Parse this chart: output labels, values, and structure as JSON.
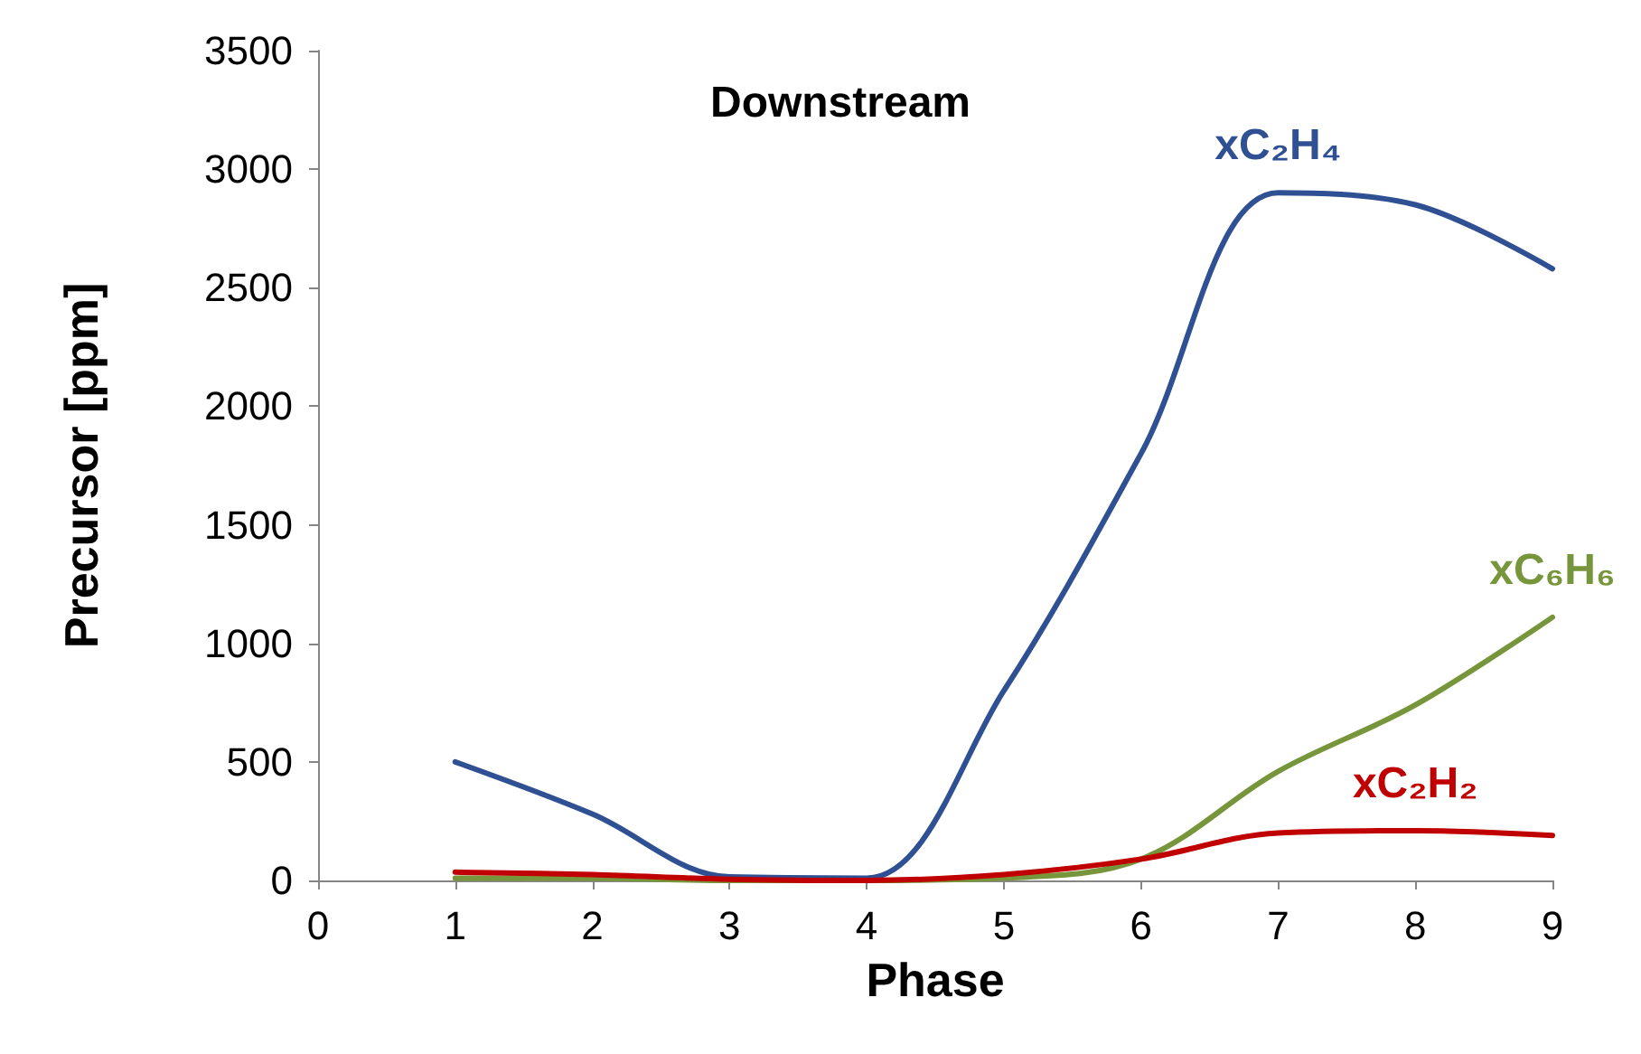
{
  "chart_data": {
    "type": "line",
    "title": "Downstream",
    "xlabel": "Phase",
    "ylabel": "Precursor [ppm]",
    "x": [
      1,
      2,
      3,
      4,
      5,
      6,
      7,
      8,
      9
    ],
    "series": [
      {
        "name": "xC₂H₄",
        "color": "#2f5092",
        "values": [
          500,
          280,
          15,
          10,
          800,
          1800,
          2900,
          2850,
          2580
        ]
      },
      {
        "name": "xC₆H₆",
        "color": "#77963b",
        "values": [
          10,
          10,
          0,
          0,
          10,
          90,
          460,
          740,
          1110
        ]
      },
      {
        "name": "xC₂H₂",
        "color": "#c00000",
        "values": [
          35,
          25,
          5,
          0,
          25,
          90,
          200,
          210,
          190
        ]
      }
    ],
    "xlim": [
      0,
      9
    ],
    "xticks": [
      0,
      1,
      2,
      3,
      4,
      5,
      6,
      7,
      8,
      9
    ],
    "ylim": [
      0,
      3500
    ],
    "yticks": [
      0,
      500,
      1000,
      1500,
      2000,
      2500,
      3000,
      3500
    ],
    "grid": false,
    "legend": false,
    "marker": "none",
    "line_style": "solid"
  }
}
